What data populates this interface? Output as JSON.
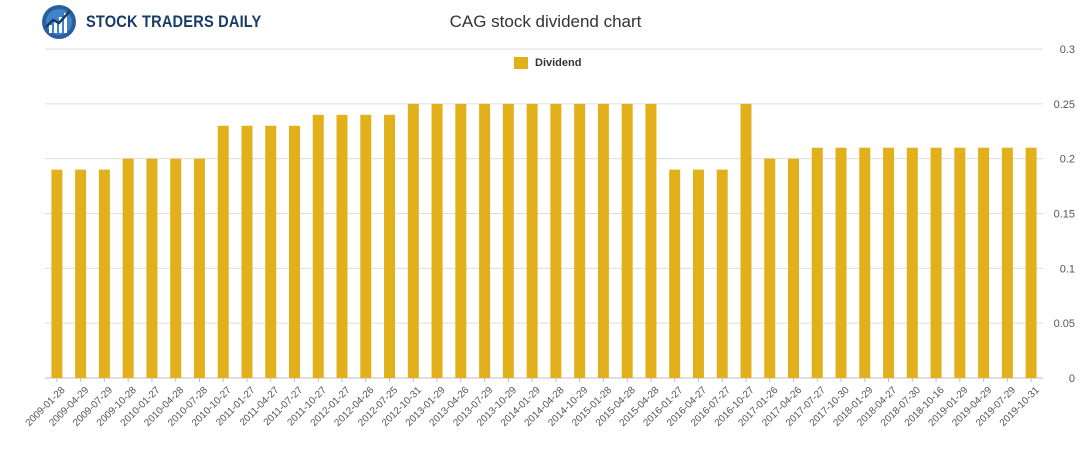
{
  "header": {
    "logo_text": "STOCK TRADERS DAILY",
    "chart_title": "CAG stock dividend chart"
  },
  "colors": {
    "bar": "#e2b01b",
    "logo_blue": "#173c68"
  },
  "icons": {
    "logo": "bull-chart-logo-icon"
  },
  "chart_data": {
    "type": "bar",
    "title": "CAG stock dividend chart",
    "xlabel": "",
    "ylabel": "",
    "ylim": [
      0,
      0.3
    ],
    "yticks": [
      "0",
      "0.05",
      "0.1",
      "0.15",
      "0.2",
      "0.25",
      "0.3"
    ],
    "grid": true,
    "legend": "top-center",
    "categories": [
      "2009-01-28",
      "2009-04-29",
      "2009-07-29",
      "2009-10-28",
      "2010-01-27",
      "2010-04-28",
      "2010-07-28",
      "2010-10-27",
      "2011-01-27",
      "2011-04-27",
      "2011-07-27",
      "2011-10-27",
      "2012-01-27",
      "2012-04-26",
      "2012-07-25",
      "2012-10-31",
      "2013-01-29",
      "2013-04-26",
      "2013-07-29",
      "2013-10-29",
      "2014-01-29",
      "2014-04-28",
      "2014-10-29",
      "2015-01-28",
      "2015-04-28",
      "2015-04-28",
      "2016-01-27",
      "2016-04-27",
      "2016-07-27",
      "2016-10-27",
      "2017-01-26",
      "2017-04-26",
      "2017-07-27",
      "2017-10-30",
      "2018-01-29",
      "2018-04-27",
      "2018-07-30",
      "2018-10-16",
      "2019-01-29",
      "2019-04-29",
      "2019-07-29",
      "2019-10-31"
    ],
    "series": [
      {
        "name": "Dividend",
        "values": [
          0.19,
          0.19,
          0.19,
          0.2,
          0.2,
          0.2,
          0.2,
          0.23,
          0.23,
          0.23,
          0.23,
          0.24,
          0.24,
          0.24,
          0.24,
          0.25,
          0.25,
          0.25,
          0.25,
          0.25,
          0.25,
          0.25,
          0.25,
          0.25,
          0.25,
          0.25,
          0.19,
          0.19,
          0.19,
          0.25,
          0.2,
          0.2,
          0.21,
          0.21,
          0.21,
          0.21,
          0.21,
          0.21,
          0.21,
          0.21,
          0.21,
          0.21
        ]
      }
    ]
  }
}
